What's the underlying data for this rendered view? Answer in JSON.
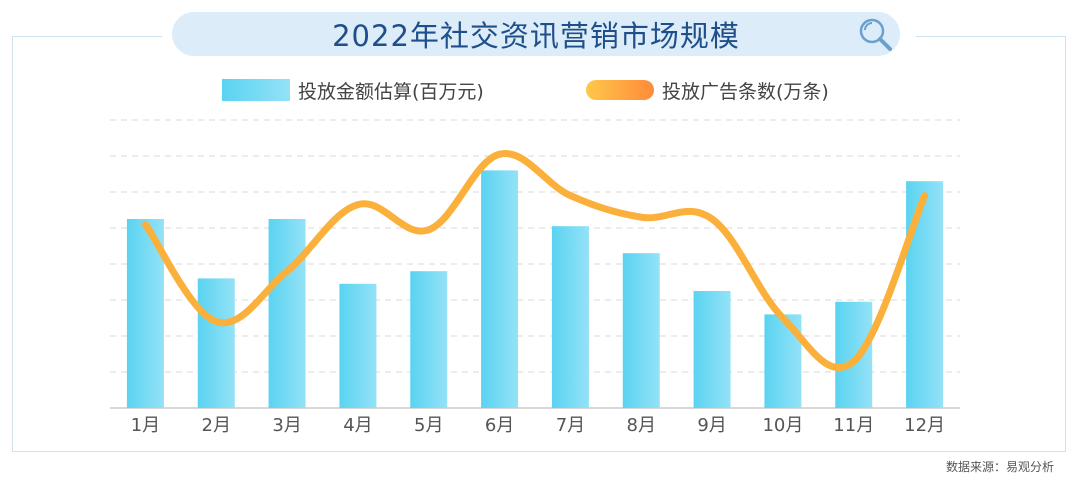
{
  "title": "2022年社交资讯营销市场规模",
  "legend": {
    "bar_label": "投放金额估算(百万元)",
    "line_label": "投放广告条数(万条)"
  },
  "source": "数据来源：易观分析",
  "colors": {
    "bar_start": "#5ad3f1",
    "bar_end": "#94e2f7",
    "line": "#fbb03b",
    "title_bg": "#dcecf8",
    "title_text": "#1f4f8a",
    "grid": "#d9d9d9"
  },
  "chart_data": {
    "type": "bar",
    "categories": [
      "1月",
      "2月",
      "3月",
      "4月",
      "5月",
      "6月",
      "7月",
      "8月",
      "9月",
      "10月",
      "11月",
      "12月"
    ],
    "ylim": [
      0,
      8
    ],
    "grid": "dashed horizontal",
    "legend_position": "top",
    "series": [
      {
        "name": "投放金额估算(百万元)",
        "type": "bar",
        "values": [
          5.25,
          3.6,
          5.25,
          3.45,
          3.8,
          6.6,
          5.05,
          4.3,
          3.25,
          2.6,
          2.95,
          6.3
        ]
      },
      {
        "name": "投放广告条数(万条)",
        "type": "line",
        "values": [
          5.1,
          2.4,
          3.8,
          5.65,
          4.95,
          7.05,
          5.9,
          5.3,
          5.25,
          2.5,
          1.3,
          5.9
        ]
      }
    ]
  }
}
